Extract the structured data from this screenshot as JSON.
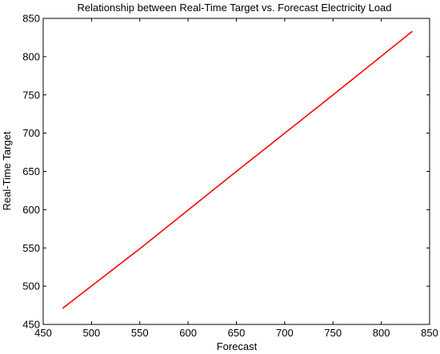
{
  "chart_data": {
    "type": "line",
    "title": "Relationship between Real-Time Target vs. Forecast Electricity Load",
    "xlabel": "Forecast",
    "ylabel": "Real-Time Target",
    "xlim": [
      450,
      850
    ],
    "ylim": [
      450,
      850
    ],
    "xticks": [
      450,
      500,
      550,
      600,
      650,
      700,
      750,
      800,
      850
    ],
    "yticks": [
      450,
      500,
      550,
      600,
      650,
      700,
      750,
      800,
      850
    ],
    "grid": false,
    "series": [
      {
        "color": "#ff0000",
        "x": [
          470,
          550,
          650,
          750,
          832
        ],
        "y": [
          471,
          549,
          650,
          750,
          833
        ]
      }
    ]
  }
}
